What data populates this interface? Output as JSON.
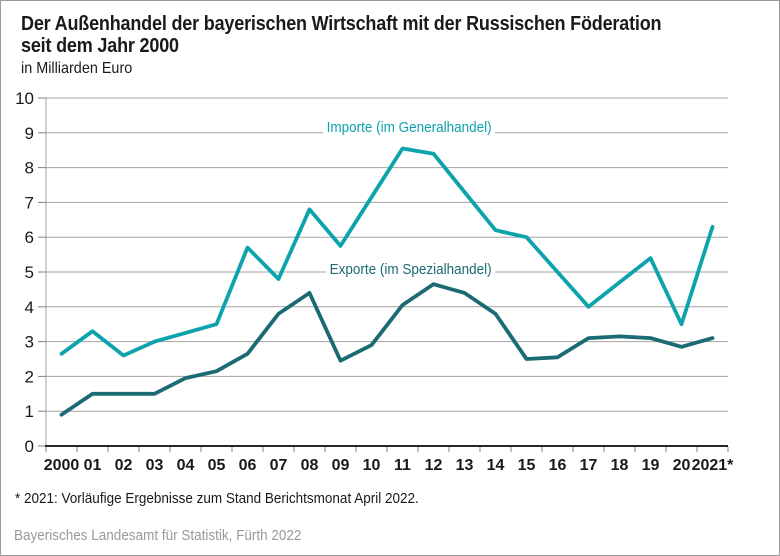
{
  "header": {
    "title_line1": "Der Außenhandel der bayerischen Wirtschaft mit der Russischen Föderation",
    "title_line2": "seit dem Jahr 2000",
    "subtitle": "in Milliarden Euro"
  },
  "chart_data": {
    "type": "line",
    "title": "Der Außenhandel der bayerischen Wirtschaft mit der Russischen Föderation seit dem Jahr 2000",
    "ylabel": "in Milliarden Euro",
    "xlabel": "",
    "ylim": [
      0,
      10
    ],
    "ytick_step": 1,
    "grid": "horizontal",
    "legend_position": "inline-labels",
    "categories": [
      "2000",
      "01",
      "02",
      "03",
      "04",
      "05",
      "06",
      "07",
      "08",
      "09",
      "10",
      "11",
      "12",
      "13",
      "14",
      "15",
      "16",
      "17",
      "18",
      "19",
      "20",
      "2021*"
    ],
    "series": [
      {
        "name": "Importe (im Generalhandel)",
        "color": "#0da3ac",
        "values": [
          2.65,
          3.3,
          2.6,
          3.0,
          3.25,
          3.5,
          5.7,
          4.8,
          6.8,
          5.75,
          7.15,
          8.55,
          8.4,
          7.3,
          6.2,
          6.0,
          5.0,
          4.0,
          4.7,
          5.4,
          3.5,
          6.3
        ]
      },
      {
        "name": "Exporte (im Spezialhandel)",
        "color": "#1a6b73",
        "values": [
          0.9,
          1.5,
          1.5,
          1.5,
          1.95,
          2.15,
          2.65,
          3.8,
          4.4,
          2.45,
          2.9,
          4.05,
          4.65,
          4.4,
          3.8,
          2.5,
          2.55,
          3.1,
          3.15,
          3.1,
          2.85,
          3.1
        ]
      }
    ]
  },
  "footer": {
    "footnote": "* 2021: Vorläufige Ergebnisse zum Stand Berichtsmonat April 2022.",
    "source": "Bayerisches Landesamt für Statistik, Fürth 2022"
  },
  "theme": {
    "grid": "#a3a3a3",
    "tick": "#7f7f7f",
    "axis": "#262626",
    "text": "#1a1a1a",
    "source_text": "#999999"
  }
}
